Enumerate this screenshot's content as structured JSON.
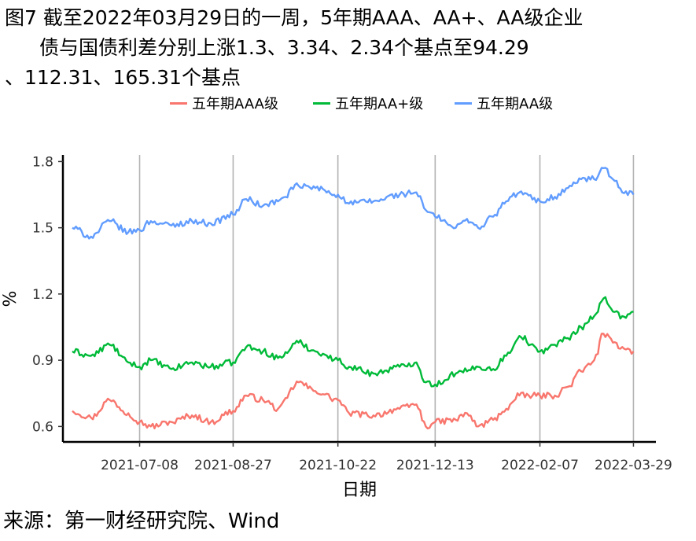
{
  "figure": {
    "title_line1": "图7  截至2022年03月29日的一周，5年期AAA、AA+、AA级企业",
    "title_line2": "债与国债利差分别上涨1.3、3.34、2.34个基点至94.29",
    "title_line3": "、112.31、165.31个基点",
    "source": "来源：第一财经研究院、Wind"
  },
  "chart_data": {
    "type": "line",
    "xlabel": "日期",
    "ylabel": "%",
    "ylim": [
      0.53,
      1.83
    ],
    "yticks": [
      0.6,
      0.9,
      1.2,
      1.5,
      1.8
    ],
    "ytick_labels": [
      "0.6",
      "0.9",
      "1.2",
      "1.5",
      "1.8"
    ],
    "xlim": [
      "2021-05-28",
      "2022-04-10"
    ],
    "x_start": "2021-06-02",
    "x_end": "2022-03-29",
    "xticks": [
      "2021-07-08",
      "2021-08-27",
      "2021-10-22",
      "2021-12-13",
      "2022-02-07",
      "2022-03-29"
    ],
    "vertical_gridlines": true,
    "legend_position": "top",
    "series": [
      {
        "name": "五年期AAA级",
        "color": "#F8766D",
        "anchors": [
          [
            "2021-06-02",
            0.67
          ],
          [
            "2021-06-12",
            0.64
          ],
          [
            "2021-06-22",
            0.72
          ],
          [
            "2021-07-02",
            0.66
          ],
          [
            "2021-07-08",
            0.62
          ],
          [
            "2021-07-14",
            0.6
          ],
          [
            "2021-07-25",
            0.62
          ],
          [
            "2021-08-05",
            0.65
          ],
          [
            "2021-08-15",
            0.62
          ],
          [
            "2021-08-27",
            0.67
          ],
          [
            "2021-09-03",
            0.74
          ],
          [
            "2021-09-12",
            0.72
          ],
          [
            "2021-09-20",
            0.68
          ],
          [
            "2021-10-01",
            0.8
          ],
          [
            "2021-10-10",
            0.76
          ],
          [
            "2021-10-22",
            0.72
          ],
          [
            "2021-10-28",
            0.66
          ],
          [
            "2021-11-10",
            0.65
          ],
          [
            "2021-11-24",
            0.68
          ],
          [
            "2021-12-03",
            0.7
          ],
          [
            "2021-12-08",
            0.6
          ],
          [
            "2021-12-13",
            0.62
          ],
          [
            "2021-12-24",
            0.63
          ],
          [
            "2021-12-30",
            0.66
          ],
          [
            "2022-01-05",
            0.6
          ],
          [
            "2022-01-13",
            0.63
          ],
          [
            "2022-01-20",
            0.68
          ],
          [
            "2022-01-27",
            0.74
          ],
          [
            "2022-02-07",
            0.74
          ],
          [
            "2022-02-15",
            0.74
          ],
          [
            "2022-02-22",
            0.78
          ],
          [
            "2022-03-01",
            0.85
          ],
          [
            "2022-03-08",
            0.9
          ],
          [
            "2022-03-13",
            1.02
          ],
          [
            "2022-03-18",
            0.98
          ],
          [
            "2022-03-23",
            0.96
          ],
          [
            "2022-03-29",
            0.94
          ]
        ]
      },
      {
        "name": "五年期AA+级",
        "color": "#00BA38",
        "anchors": [
          [
            "2021-06-02",
            0.94
          ],
          [
            "2021-06-12",
            0.92
          ],
          [
            "2021-06-22",
            0.97
          ],
          [
            "2021-07-02",
            0.89
          ],
          [
            "2021-07-08",
            0.87
          ],
          [
            "2021-07-14",
            0.9
          ],
          [
            "2021-07-25",
            0.86
          ],
          [
            "2021-08-05",
            0.89
          ],
          [
            "2021-08-15",
            0.87
          ],
          [
            "2021-08-27",
            0.89
          ],
          [
            "2021-09-03",
            0.96
          ],
          [
            "2021-09-12",
            0.94
          ],
          [
            "2021-09-20",
            0.91
          ],
          [
            "2021-10-01",
            0.98
          ],
          [
            "2021-10-10",
            0.94
          ],
          [
            "2021-10-22",
            0.9
          ],
          [
            "2021-10-28",
            0.87
          ],
          [
            "2021-11-10",
            0.84
          ],
          [
            "2021-11-24",
            0.87
          ],
          [
            "2021-12-03",
            0.89
          ],
          [
            "2021-12-08",
            0.8
          ],
          [
            "2021-12-13",
            0.79
          ],
          [
            "2021-12-24",
            0.84
          ],
          [
            "2021-12-30",
            0.85
          ],
          [
            "2022-01-05",
            0.87
          ],
          [
            "2022-01-13",
            0.86
          ],
          [
            "2022-01-20",
            0.92
          ],
          [
            "2022-01-27",
            1.01
          ],
          [
            "2022-02-07",
            0.94
          ],
          [
            "2022-02-15",
            0.97
          ],
          [
            "2022-02-22",
            1.0
          ],
          [
            "2022-03-01",
            1.05
          ],
          [
            "2022-03-08",
            1.1
          ],
          [
            "2022-03-13",
            1.18
          ],
          [
            "2022-03-18",
            1.12
          ],
          [
            "2022-03-23",
            1.1
          ],
          [
            "2022-03-29",
            1.12
          ]
        ]
      },
      {
        "name": "五年期AA级",
        "color": "#619CFF",
        "anchors": [
          [
            "2021-06-02",
            1.5
          ],
          [
            "2021-06-12",
            1.46
          ],
          [
            "2021-06-22",
            1.53
          ],
          [
            "2021-07-02",
            1.48
          ],
          [
            "2021-07-08",
            1.49
          ],
          [
            "2021-07-14",
            1.53
          ],
          [
            "2021-07-25",
            1.51
          ],
          [
            "2021-08-05",
            1.53
          ],
          [
            "2021-08-15",
            1.52
          ],
          [
            "2021-08-27",
            1.56
          ],
          [
            "2021-09-03",
            1.63
          ],
          [
            "2021-09-12",
            1.6
          ],
          [
            "2021-09-20",
            1.62
          ],
          [
            "2021-10-01",
            1.69
          ],
          [
            "2021-10-10",
            1.68
          ],
          [
            "2021-10-22",
            1.65
          ],
          [
            "2021-10-28",
            1.61
          ],
          [
            "2021-11-10",
            1.62
          ],
          [
            "2021-11-24",
            1.65
          ],
          [
            "2021-12-03",
            1.66
          ],
          [
            "2021-12-08",
            1.58
          ],
          [
            "2021-12-13",
            1.55
          ],
          [
            "2021-12-24",
            1.5
          ],
          [
            "2021-12-30",
            1.54
          ],
          [
            "2022-01-05",
            1.5
          ],
          [
            "2022-01-13",
            1.55
          ],
          [
            "2022-01-20",
            1.62
          ],
          [
            "2022-01-27",
            1.66
          ],
          [
            "2022-02-07",
            1.62
          ],
          [
            "2022-02-15",
            1.64
          ],
          [
            "2022-02-22",
            1.68
          ],
          [
            "2022-03-01",
            1.72
          ],
          [
            "2022-03-08",
            1.72
          ],
          [
            "2022-03-13",
            1.77
          ],
          [
            "2022-03-18",
            1.72
          ],
          [
            "2022-03-23",
            1.66
          ],
          [
            "2022-03-29",
            1.65
          ]
        ]
      }
    ]
  }
}
